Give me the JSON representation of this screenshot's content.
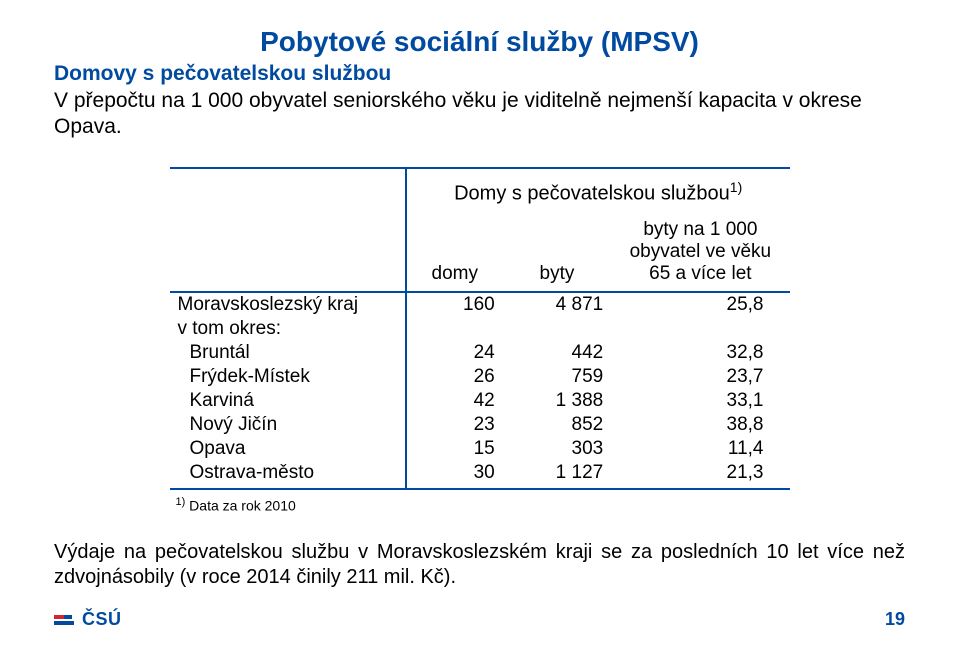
{
  "colors": {
    "brand_blue": "#004a9f",
    "brand_red": "#d22630",
    "text": "#000000",
    "background": "#ffffff"
  },
  "title": "Pobytové sociální služby (MPSV)",
  "subtitle": "Domovy s pečovatelskou službou",
  "lead": "V přepočtu na 1 000 obyvatel seniorského věku je viditelně nejmenší kapacita v okrese Opava.",
  "table": {
    "caption": "Domy s pečovatelskou službou",
    "caption_sup": "1)",
    "headers": {
      "domy": "domy",
      "byty": "byty",
      "ratio_line1": "byty na 1 000",
      "ratio_line2": "obyvatel ve věku",
      "ratio_line3": "65 a více let"
    },
    "rows": [
      {
        "label": "Moravskoslezský kraj",
        "indent": false,
        "domy": "160",
        "byty": "4 871",
        "ratio": "25,8"
      },
      {
        "label": "v tom okres:",
        "indent": false,
        "domy": "",
        "byty": "",
        "ratio": ""
      },
      {
        "label": "Bruntál",
        "indent": true,
        "domy": "24",
        "byty": "442",
        "ratio": "32,8"
      },
      {
        "label": "Frýdek-Místek",
        "indent": true,
        "domy": "26",
        "byty": "759",
        "ratio": "23,7"
      },
      {
        "label": "Karviná",
        "indent": true,
        "domy": "42",
        "byty": "1 388",
        "ratio": "33,1"
      },
      {
        "label": "Nový Jičín",
        "indent": true,
        "domy": "23",
        "byty": "852",
        "ratio": "38,8"
      },
      {
        "label": "Opava",
        "indent": true,
        "domy": "15",
        "byty": "303",
        "ratio": "11,4"
      },
      {
        "label": "Ostrava-město",
        "indent": true,
        "domy": "30",
        "byty": "1 127",
        "ratio": "21,3"
      }
    ],
    "footnote_sup": "1)",
    "footnote_text": " Data za rok 2010"
  },
  "paragraph": "Výdaje na pečovatelskou službu v Moravskoslezském kraji se za posledních 10 let více než zdvojnásobily (v roce 2014 činily 211 mil. Kč).",
  "logo_text": "ČSÚ",
  "page_number": "19"
}
